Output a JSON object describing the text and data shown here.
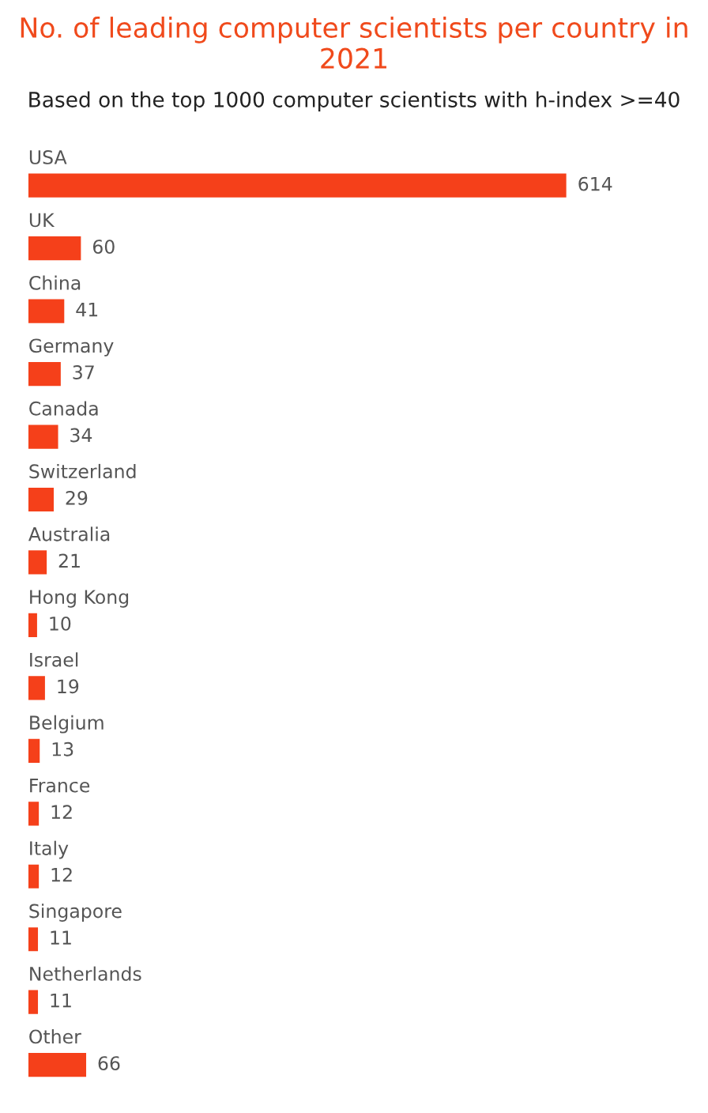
{
  "chart_data": {
    "type": "bar",
    "orientation": "horizontal",
    "title": "No. of leading computer scientists per country in 2021",
    "subtitle": "Based on the top 1000 computer scientists with h-index >=40",
    "categories": [
      "USA",
      "UK",
      "China",
      "Germany",
      "Canada",
      "Switzerland",
      "Australia",
      "Hong Kong",
      "Israel",
      "Belgium",
      "France",
      "Italy",
      "Singapore",
      "Netherlands",
      "Other"
    ],
    "values": [
      614,
      60,
      41,
      37,
      34,
      29,
      21,
      10,
      19,
      13,
      12,
      12,
      11,
      11,
      66
    ],
    "color": "#f5401a",
    "data_labels": true
  }
}
